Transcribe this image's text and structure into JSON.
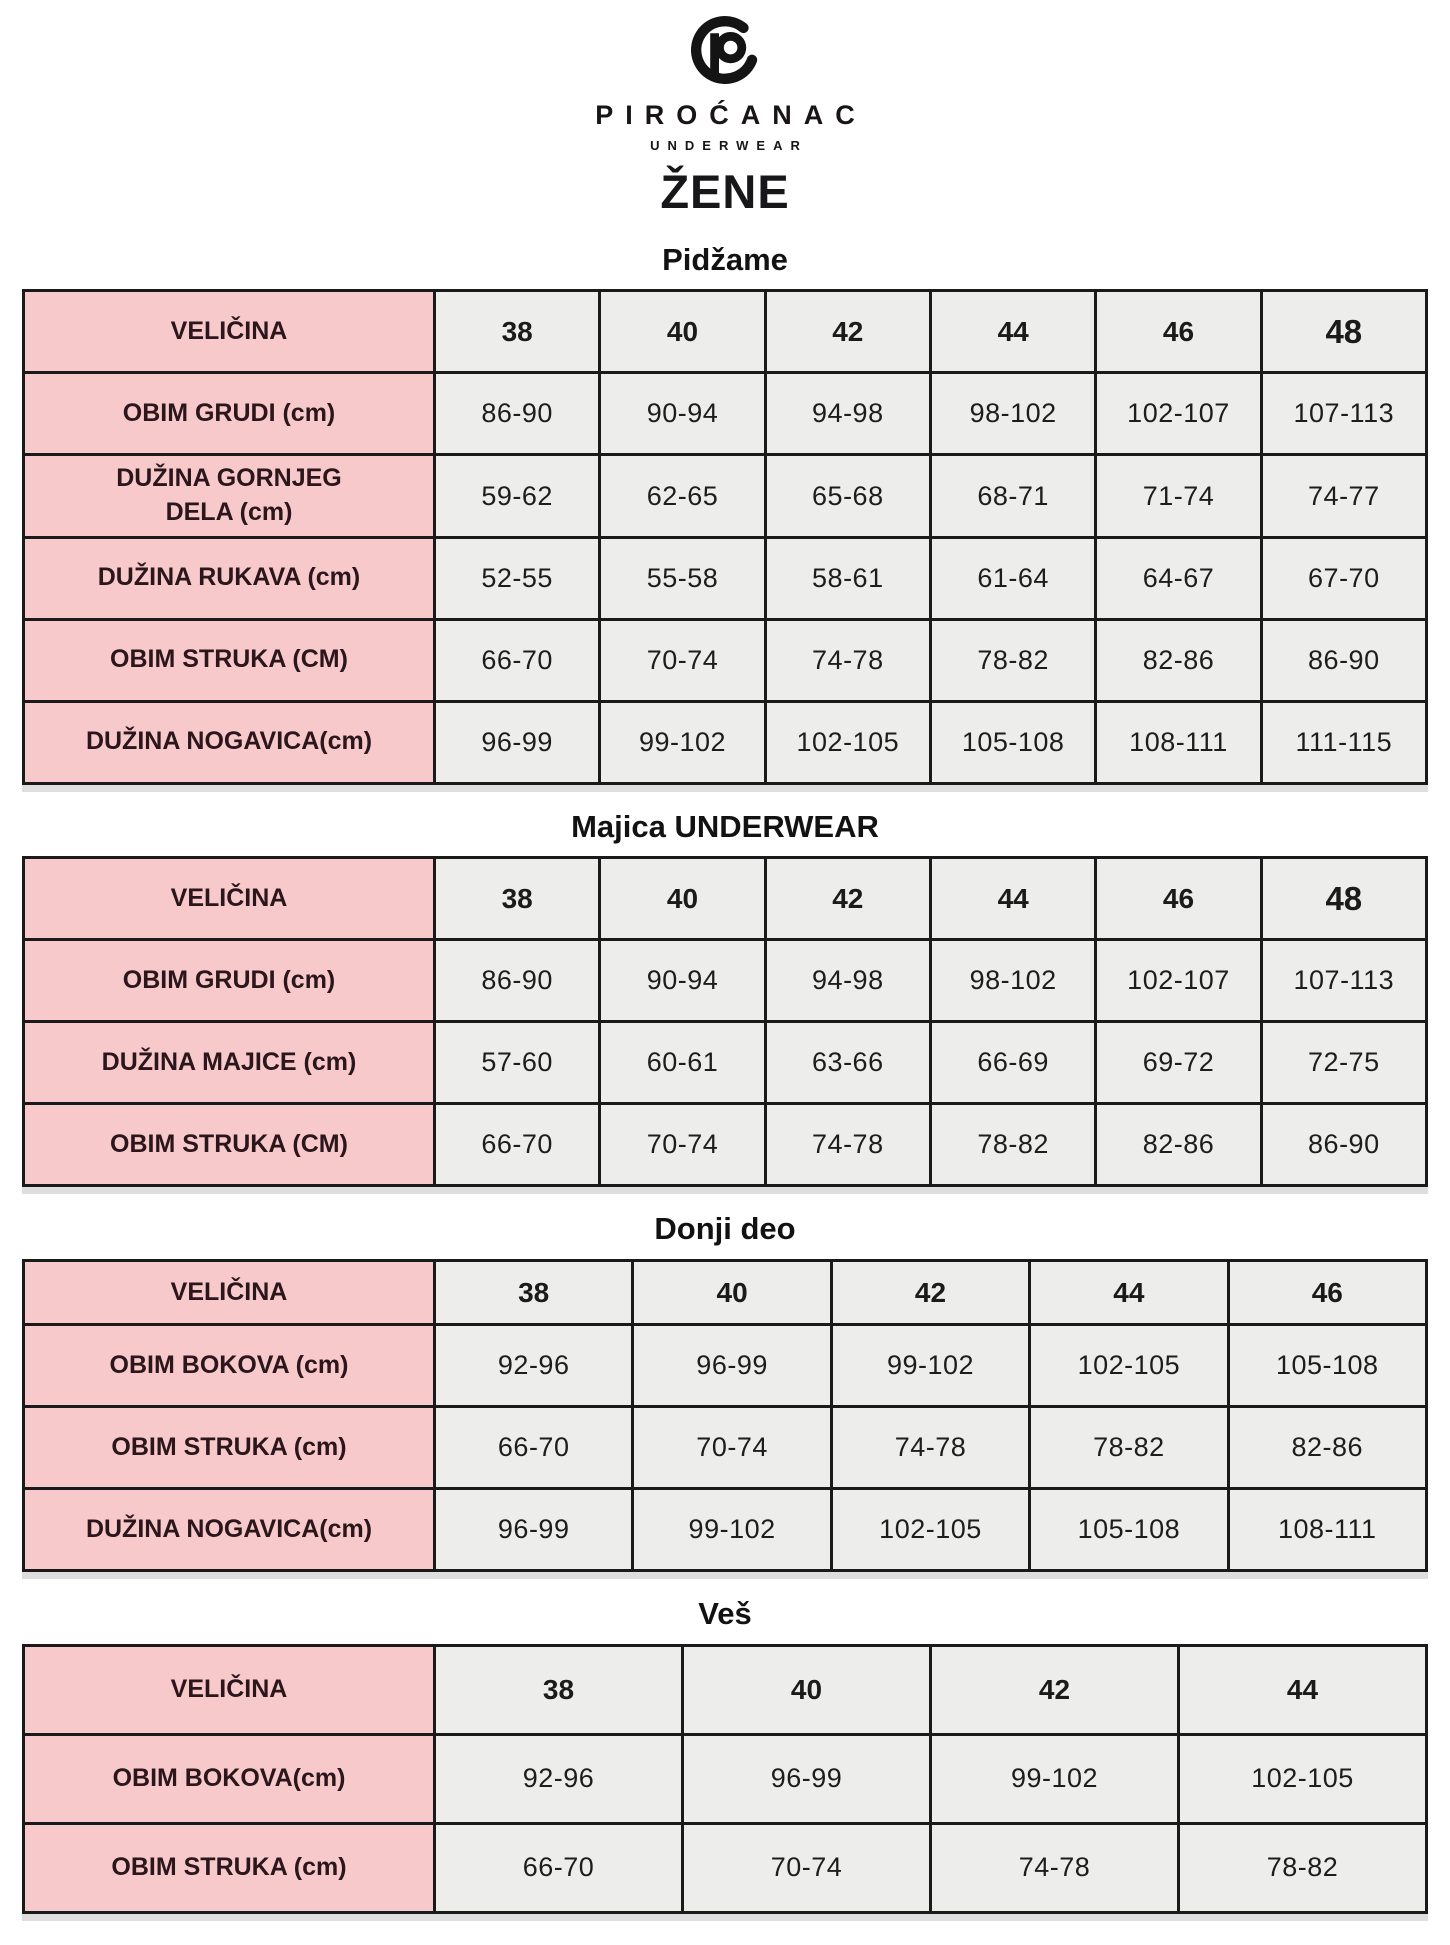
{
  "brand": {
    "logo_icon": "p-in-broken-circle",
    "name": "PIROĆANAC",
    "subtitle": "UNDERWEAR"
  },
  "page_title": "ŽENE",
  "colors": {
    "label_cell_pink": "#F8C9CB",
    "value_cell_gray": "#EDEDEB",
    "table_border": "#1A1A1A",
    "label_text": "#2A161B",
    "value_text": "#1D1D1D"
  },
  "tables": [
    {
      "id": "pidzame",
      "title": "Pidžame",
      "big_last_size": true,
      "header": {
        "label": "VELIČINA",
        "sizes": [
          "38",
          "40",
          "42",
          "44",
          "46",
          "48"
        ]
      },
      "rows": [
        {
          "label": "OBIM GRUDI (cm)",
          "values": [
            "86-90",
            "90-94",
            "94-98",
            "98-102",
            "102-107",
            "107-113"
          ]
        },
        {
          "label": "DUŽINA GORNJEG\nDELA (cm)",
          "values": [
            "59-62",
            "62-65",
            "65-68",
            "68-71",
            "71-74",
            "74-77"
          ]
        },
        {
          "label": "DUŽINA RUKAVA (cm)",
          "values": [
            "52-55",
            "55-58",
            "58-61",
            "61-64",
            "64-67",
            "67-70"
          ]
        },
        {
          "label": "OBIM STRUKA (CM)",
          "values": [
            "66-70",
            "70-74",
            "74-78",
            "78-82",
            "82-86",
            "86-90"
          ]
        },
        {
          "label": "DUŽINA NOGAVICA(cm)",
          "values": [
            "96-99",
            "99-102",
            "102-105",
            "105-108",
            "108-111",
            "111-115"
          ]
        }
      ]
    },
    {
      "id": "majica-underwear",
      "title": "Majica UNDERWEAR",
      "big_last_size": true,
      "header": {
        "label": "VELIČINA",
        "sizes": [
          "38",
          "40",
          "42",
          "44",
          "46",
          "48"
        ]
      },
      "rows": [
        {
          "label": "OBIM GRUDI (cm)",
          "values": [
            "86-90",
            "90-94",
            "94-98",
            "98-102",
            "102-107",
            "107-113"
          ]
        },
        {
          "label": "DUŽINA MAJICE (cm)",
          "values": [
            "57-60",
            "60-61",
            "63-66",
            "66-69",
            "69-72",
            "72-75"
          ]
        },
        {
          "label": "OBIM STRUKA (CM)",
          "values": [
            "66-70",
            "70-74",
            "74-78",
            "78-82",
            "82-86",
            "86-90"
          ]
        }
      ]
    },
    {
      "id": "donji-deo",
      "title": "Donji deo",
      "big_last_size": false,
      "header": {
        "label": "VELIČINA",
        "sizes": [
          "38",
          "40",
          "42",
          "44",
          "46"
        ]
      },
      "rows": [
        {
          "label": "OBIM BOKOVA (cm)",
          "values": [
            "92-96",
            "96-99",
            "99-102",
            "102-105",
            "105-108"
          ]
        },
        {
          "label": "OBIM STRUKA (cm)",
          "values": [
            "66-70",
            "70-74",
            "74-78",
            "78-82",
            "82-86"
          ]
        },
        {
          "label": "DUŽINA NOGAVICA(cm)",
          "values": [
            "96-99",
            "99-102",
            "102-105",
            "105-108",
            "108-111"
          ]
        }
      ]
    },
    {
      "id": "ves",
      "title": "Veš",
      "big_last_size": false,
      "header": {
        "label": "VELIČINA",
        "sizes": [
          "38",
          "40",
          "42",
          "44"
        ]
      },
      "rows": [
        {
          "label": "OBIM BOKOVA(cm)",
          "values": [
            "92-96",
            "96-99",
            "99-102",
            "102-105"
          ]
        },
        {
          "label": "OBIM STRUKA (cm)",
          "values": [
            "66-70",
            "70-74",
            "74-78",
            "78-82"
          ]
        }
      ]
    }
  ]
}
